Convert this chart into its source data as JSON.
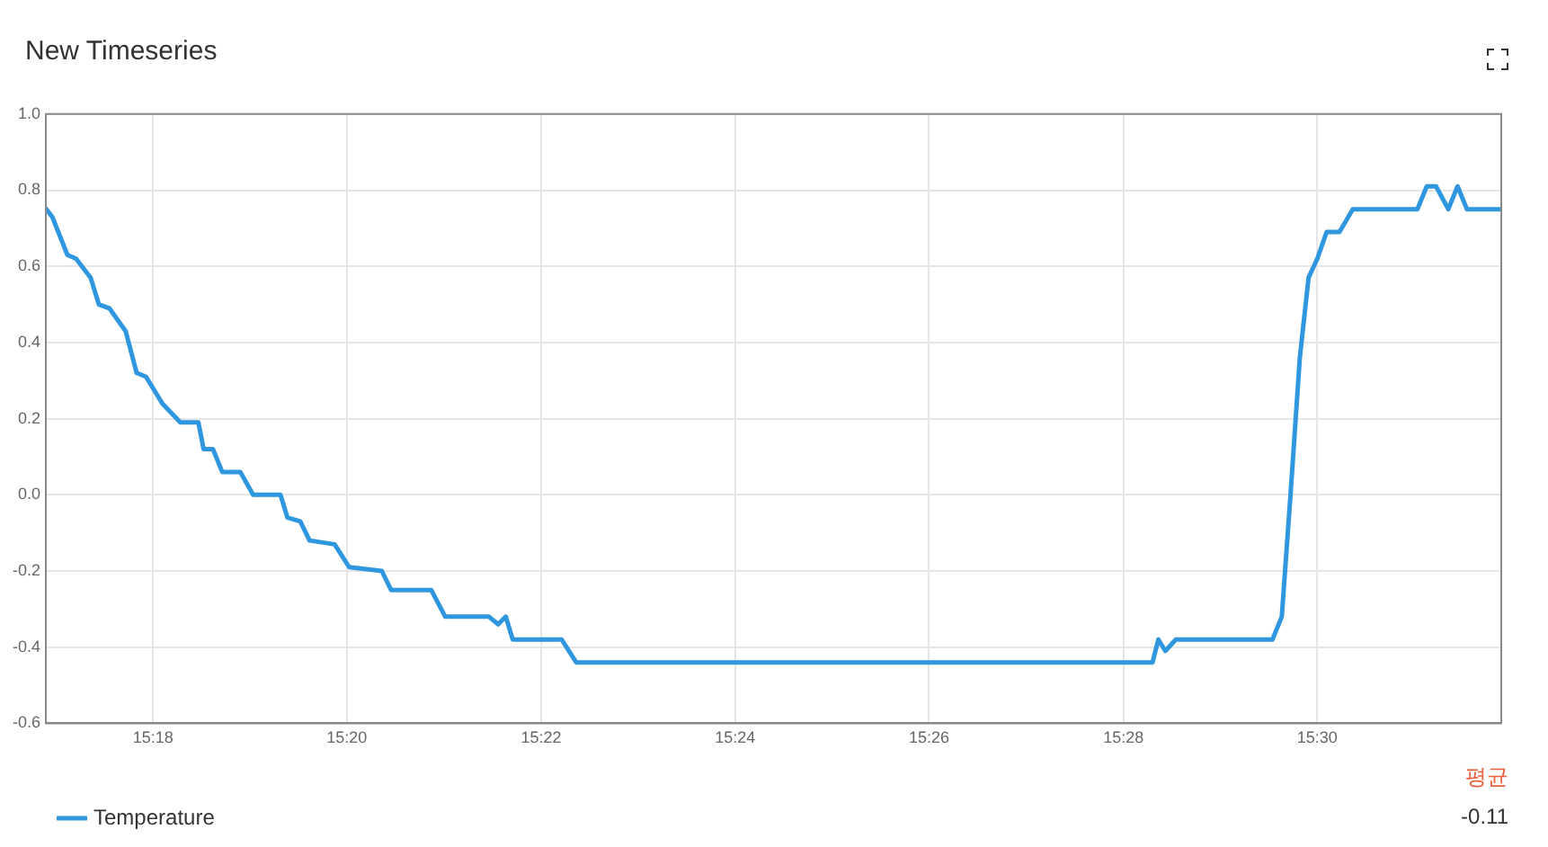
{
  "chart_data": {
    "type": "line",
    "title": "New Timeseries",
    "x": [
      15.2817,
      15.2827,
      15.2853,
      15.2868,
      15.2893,
      15.2907,
      15.2925,
      15.2953,
      15.2972,
      15.2988,
      15.3016,
      15.3047,
      15.3078,
      15.3087,
      15.3103,
      15.3119,
      15.315,
      15.3172,
      15.3219,
      15.3231,
      15.3253,
      15.3269,
      15.3312,
      15.3337,
      15.3393,
      15.3409,
      15.3478,
      15.3502,
      15.3577,
      15.3593,
      15.3606,
      15.3618,
      15.3702,
      15.3727,
      15.4717,
      15.4727,
      15.4739,
      15.4757,
      15.4923,
      15.4939,
      15.4954,
      15.497,
      15.4985,
      15.5,
      15.5016,
      15.5038,
      15.5061,
      15.5172,
      15.5188,
      15.5204,
      15.5225,
      15.5241,
      15.5257,
      15.5313
    ],
    "series": [
      {
        "name": "Temperature",
        "color": "#2f96e0",
        "values": [
          0.75,
          0.73,
          0.63,
          0.62,
          0.57,
          0.5,
          0.49,
          0.43,
          0.32,
          0.31,
          0.24,
          0.19,
          0.19,
          0.12,
          0.12,
          0.06,
          0.06,
          0.0,
          0.0,
          -0.06,
          -0.07,
          -0.12,
          -0.13,
          -0.19,
          -0.2,
          -0.25,
          -0.25,
          -0.32,
          -0.32,
          -0.34,
          -0.32,
          -0.38,
          -0.38,
          -0.44,
          -0.44,
          -0.38,
          -0.41,
          -0.38,
          -0.38,
          -0.32,
          0.0,
          0.36,
          0.57,
          0.62,
          0.69,
          0.69,
          0.75,
          0.75,
          0.81,
          0.81,
          0.75,
          0.81,
          0.75,
          0.75
        ]
      }
    ],
    "xlim": [
      15.2816,
      15.5316
    ],
    "xticks": [
      {
        "value": 15.3,
        "label": "15:18"
      },
      {
        "value": 15.3333,
        "label": "15:20"
      },
      {
        "value": 15.3667,
        "label": "15:22"
      },
      {
        "value": 15.4,
        "label": "15:24"
      },
      {
        "value": 15.4333,
        "label": "15:26"
      },
      {
        "value": 15.4667,
        "label": "15:28"
      },
      {
        "value": 15.5,
        "label": "15:30"
      }
    ],
    "ylim": [
      -0.6,
      1.0
    ],
    "yticks": [
      {
        "value": -0.6,
        "label": "-0.6"
      },
      {
        "value": -0.4,
        "label": "-0.4"
      },
      {
        "value": -0.2,
        "label": "-0.2"
      },
      {
        "value": 0,
        "label": "0.0"
      },
      {
        "value": 0.2,
        "label": "0.2"
      },
      {
        "value": 0.4,
        "label": "0.4"
      },
      {
        "value": 0.6,
        "label": "0.6"
      },
      {
        "value": 0.8,
        "label": "0.8"
      },
      {
        "value": 1.0,
        "label": "1.0"
      }
    ],
    "grid": true,
    "legend": "bottom left",
    "marker": "none",
    "line_style": "solid",
    "annotations": [
      "평균",
      "-0.11"
    ]
  }
}
